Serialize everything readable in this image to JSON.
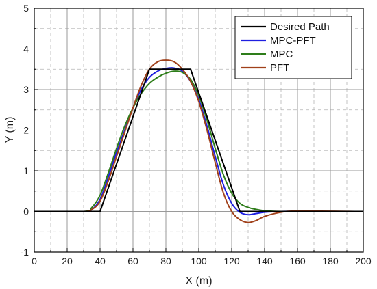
{
  "chart_data": {
    "type": "line",
    "title": "",
    "xlabel": "X (m)",
    "ylabel": "Y (m)",
    "xlim": [
      0,
      200
    ],
    "ylim": [
      -1,
      5
    ],
    "xticks": [
      0,
      20,
      40,
      60,
      80,
      100,
      120,
      140,
      160,
      180,
      200
    ],
    "yticks": [
      -1,
      0,
      1,
      2,
      3,
      4,
      5
    ],
    "grid": true,
    "minor_grid": true,
    "legend_position": "top-right",
    "series": [
      {
        "name": "Desired Path",
        "color": "#000000",
        "x": [
          0,
          40,
          70,
          95,
          125,
          200
        ],
        "y": [
          0,
          0,
          3.5,
          3.5,
          0,
          0
        ]
      },
      {
        "name": "MPC-PFT",
        "color": "#1f1fe0",
        "x": [
          0,
          30,
          35,
          40,
          45,
          50,
          55,
          60,
          65,
          70,
          75,
          80,
          85,
          90,
          95,
          100,
          105,
          110,
          115,
          120,
          125,
          130,
          135,
          140,
          150,
          160,
          200
        ],
        "y": [
          0,
          0,
          0.05,
          0.3,
          0.85,
          1.45,
          2.0,
          2.55,
          3.0,
          3.3,
          3.45,
          3.52,
          3.53,
          3.45,
          3.2,
          2.75,
          2.1,
          1.35,
          0.65,
          0.2,
          -0.02,
          -0.08,
          -0.05,
          -0.02,
          0,
          0,
          0
        ]
      },
      {
        "name": "MPC",
        "color": "#2e7d1a",
        "x": [
          0,
          30,
          35,
          40,
          45,
          50,
          55,
          60,
          65,
          70,
          75,
          80,
          85,
          90,
          95,
          100,
          105,
          110,
          115,
          120,
          125,
          130,
          135,
          140,
          150,
          160,
          200
        ],
        "y": [
          0,
          0,
          0.1,
          0.4,
          0.95,
          1.55,
          2.1,
          2.55,
          2.9,
          3.15,
          3.3,
          3.4,
          3.45,
          3.42,
          3.25,
          2.85,
          2.25,
          1.55,
          0.9,
          0.45,
          0.2,
          0.1,
          0.05,
          0.02,
          0,
          0,
          0
        ]
      },
      {
        "name": "PFT",
        "color": "#a0401a",
        "x": [
          0,
          30,
          35,
          40,
          45,
          50,
          55,
          60,
          65,
          70,
          75,
          80,
          85,
          90,
          95,
          100,
          105,
          110,
          115,
          120,
          125,
          130,
          135,
          140,
          150,
          160,
          200
        ],
        "y": [
          0,
          0,
          0.05,
          0.25,
          0.75,
          1.35,
          1.95,
          2.55,
          3.1,
          3.5,
          3.68,
          3.72,
          3.68,
          3.5,
          3.2,
          2.7,
          2.0,
          1.2,
          0.45,
          0.0,
          -0.2,
          -0.27,
          -0.22,
          -0.12,
          -0.02,
          0.01,
          0
        ]
      }
    ]
  }
}
